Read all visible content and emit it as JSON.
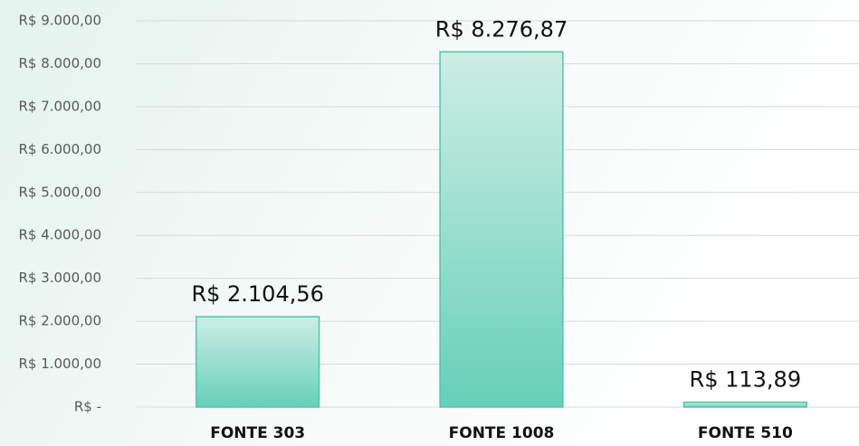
{
  "chart_data": {
    "type": "bar",
    "categories": [
      "FONTE 303",
      "FONTE 1008",
      "FONTE 510"
    ],
    "values": [
      2104.56,
      8276.87,
      113.89
    ],
    "value_labels": [
      "R$ 2.104,56",
      "R$ 8.276,87",
      "R$ 113,89"
    ],
    "color": "#66d0b8",
    "ylim": [
      0,
      9000
    ],
    "yticks": [
      {
        "value": 0,
        "label": "R$ -"
      },
      {
        "value": 1000,
        "label": "R$ 1.000,00"
      },
      {
        "value": 2000,
        "label": "R$ 2.000,00"
      },
      {
        "value": 3000,
        "label": "R$ 3.000,00"
      },
      {
        "value": 4000,
        "label": "R$ 4.000,00"
      },
      {
        "value": 5000,
        "label": "R$ 5.000,00"
      },
      {
        "value": 6000,
        "label": "R$ 6.000,00"
      },
      {
        "value": 7000,
        "label": "R$ 7.000,00"
      },
      {
        "value": 8000,
        "label": "R$ 8.000,00"
      },
      {
        "value": 9000,
        "label": "R$ 9.000,00"
      }
    ],
    "grid": true
  }
}
